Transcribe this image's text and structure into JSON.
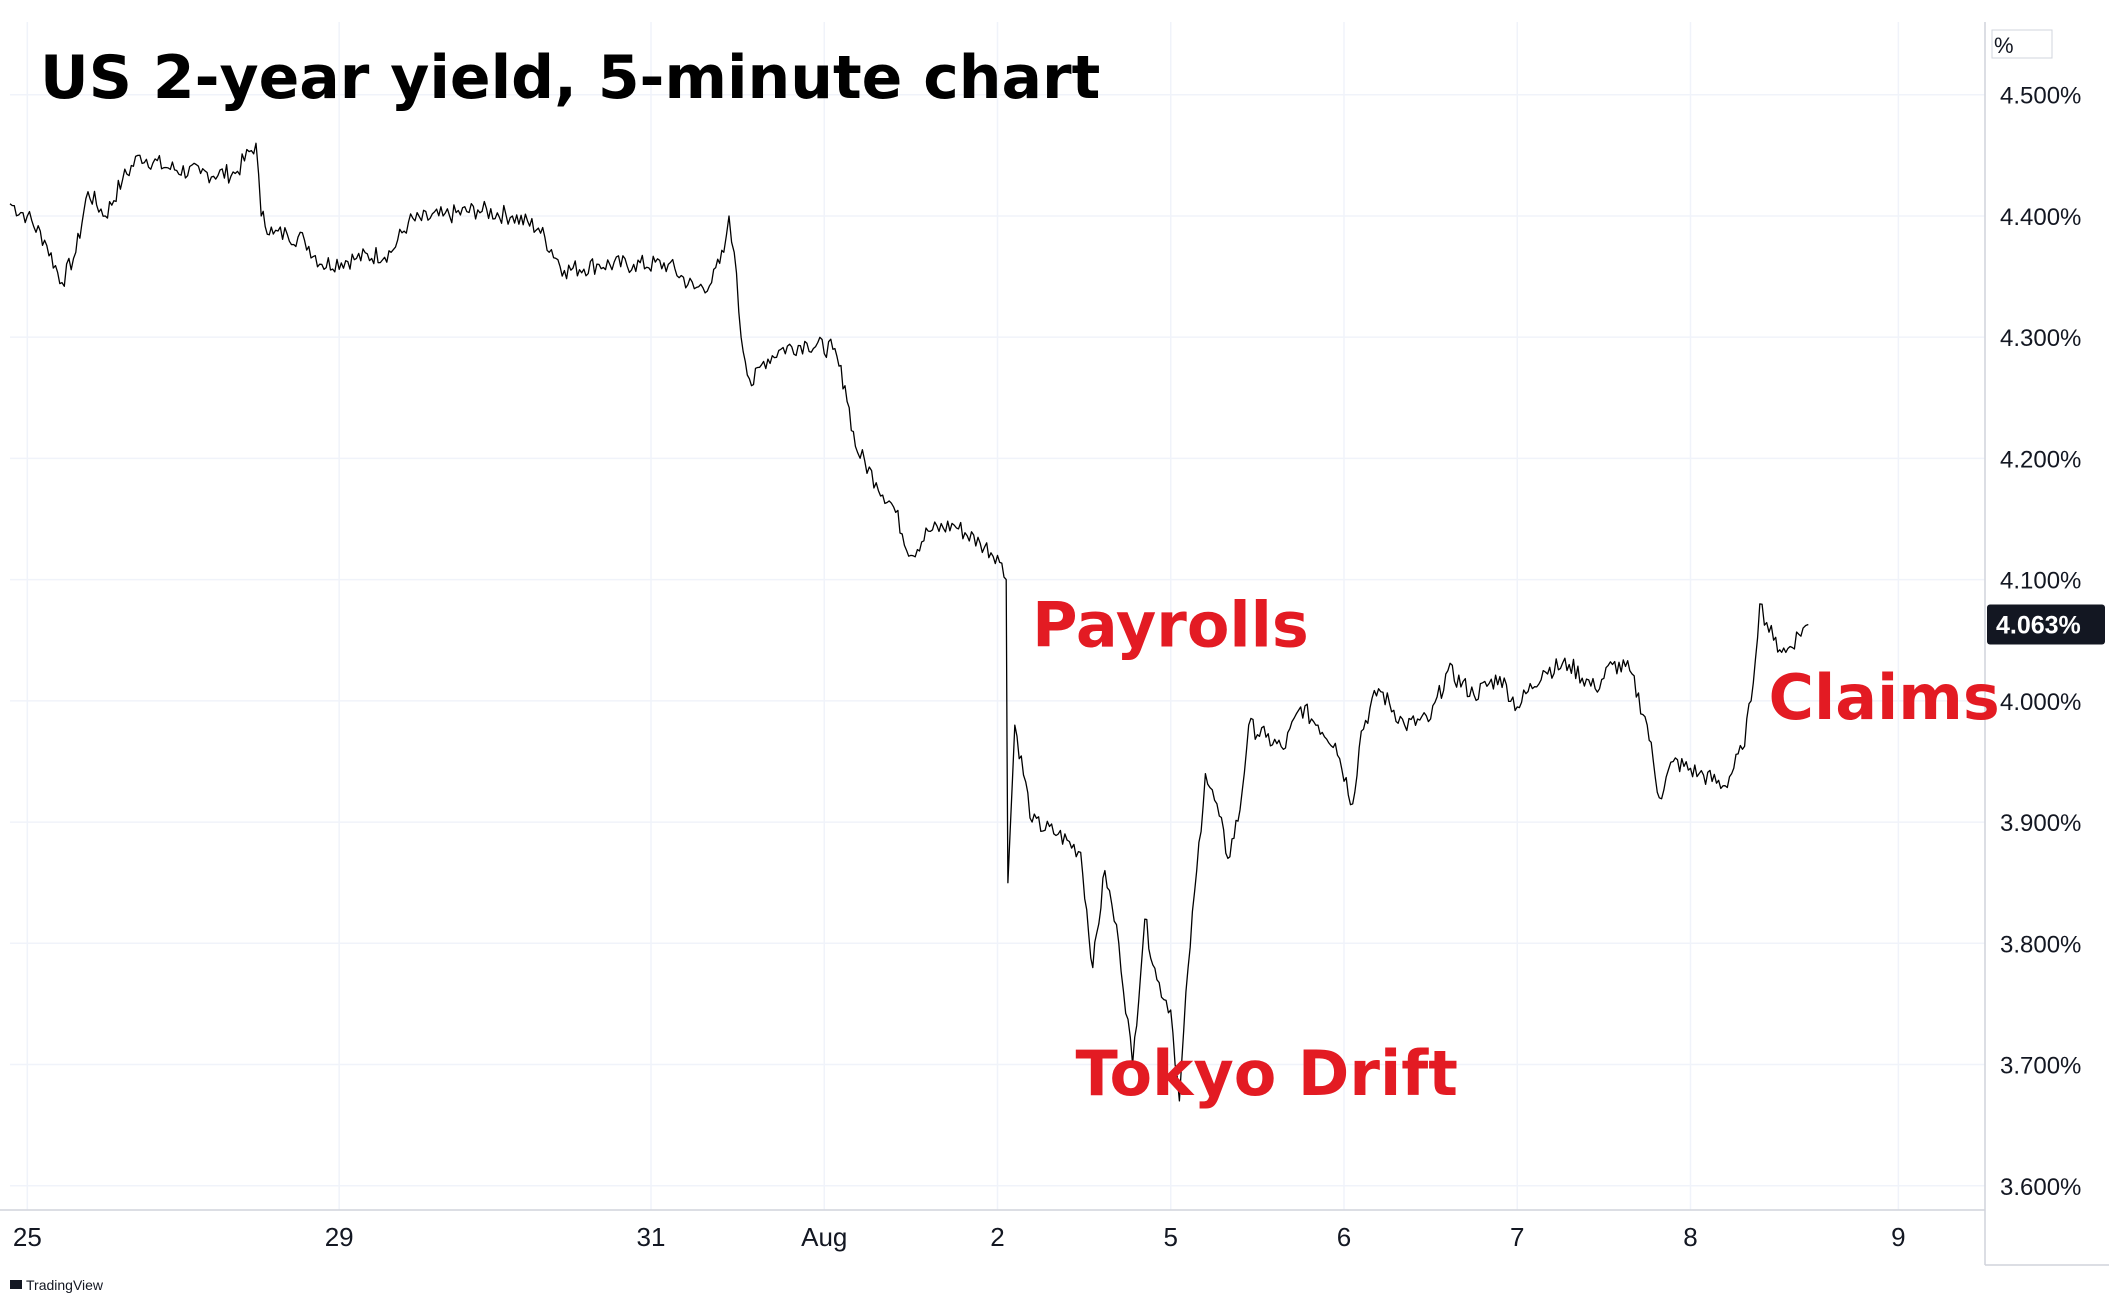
{
  "chart_data": {
    "type": "line",
    "title": "US 2-year yield, 5-minute chart",
    "ylabel": "%",
    "xlabel": "",
    "ylim": [
      3.58,
      4.56
    ],
    "y_ticks": [
      "3.600%",
      "3.700%",
      "3.800%",
      "3.900%",
      "4.000%",
      "4.100%",
      "4.200%",
      "4.300%",
      "4.400%",
      "4.500%"
    ],
    "y_tick_values": [
      3.6,
      3.7,
      3.8,
      3.9,
      4.0,
      4.1,
      4.2,
      4.3,
      4.4,
      4.5
    ],
    "x_ticks": [
      "25",
      "29",
      "31",
      "Aug",
      "2",
      "5",
      "6",
      "7",
      "8",
      "9"
    ],
    "x_tick_positions": [
      0.4,
      2.2,
      4.0,
      5.0,
      6.0,
      7.0,
      8.0,
      9.0,
      10.0,
      11.2
    ],
    "xlim": [
      0.3,
      11.7
    ],
    "grid": true,
    "last_value": 4.063,
    "last_value_label": "4.063%",
    "annotations": [
      {
        "text": "Payrolls",
        "x": 6.2,
        "y": 4.045
      },
      {
        "text": "Tokyo Drift",
        "x": 6.45,
        "y": 3.675
      },
      {
        "text": "Claims",
        "x": 10.45,
        "y": 3.985
      }
    ],
    "series": [
      {
        "points": [
          [
            0.3,
            4.41
          ],
          [
            0.4,
            4.4
          ],
          [
            0.5,
            4.38
          ],
          [
            0.6,
            4.345
          ],
          [
            0.68,
            4.37
          ],
          [
            0.75,
            4.42
          ],
          [
            0.85,
            4.4
          ],
          [
            0.95,
            4.43
          ],
          [
            1.05,
            4.45
          ],
          [
            1.2,
            4.44
          ],
          [
            1.4,
            4.435
          ],
          [
            1.6,
            4.435
          ],
          [
            1.72,
            4.46
          ],
          [
            1.75,
            4.4
          ],
          [
            1.82,
            4.385
          ],
          [
            1.9,
            4.385
          ],
          [
            2.0,
            4.38
          ],
          [
            2.1,
            4.36
          ],
          [
            2.3,
            4.365
          ],
          [
            2.5,
            4.37
          ],
          [
            2.6,
            4.395
          ],
          [
            2.8,
            4.4
          ],
          [
            3.0,
            4.405
          ],
          [
            3.2,
            4.4
          ],
          [
            3.35,
            4.39
          ],
          [
            3.5,
            4.355
          ],
          [
            3.7,
            4.36
          ],
          [
            3.9,
            4.36
          ],
          [
            4.1,
            4.36
          ],
          [
            4.25,
            4.34
          ],
          [
            4.35,
            4.345
          ],
          [
            4.42,
            4.37
          ],
          [
            4.45,
            4.4
          ],
          [
            4.48,
            4.37
          ],
          [
            4.52,
            4.3
          ],
          [
            4.58,
            4.26
          ],
          [
            4.65,
            4.28
          ],
          [
            4.75,
            4.29
          ],
          [
            4.9,
            4.295
          ],
          [
            5.05,
            4.29
          ],
          [
            5.12,
            4.26
          ],
          [
            5.18,
            4.21
          ],
          [
            5.3,
            4.18
          ],
          [
            5.4,
            4.16
          ],
          [
            5.5,
            4.12
          ],
          [
            5.6,
            4.14
          ],
          [
            5.75,
            4.145
          ],
          [
            5.9,
            4.13
          ],
          [
            6.0,
            4.12
          ],
          [
            6.05,
            4.1
          ],
          [
            6.06,
            3.85
          ],
          [
            6.1,
            3.98
          ],
          [
            6.2,
            3.9
          ],
          [
            6.35,
            3.89
          ],
          [
            6.48,
            3.875
          ],
          [
            6.55,
            3.78
          ],
          [
            6.62,
            3.86
          ],
          [
            6.7,
            3.8
          ],
          [
            6.78,
            3.7
          ],
          [
            6.85,
            3.82
          ],
          [
            6.92,
            3.77
          ],
          [
            7.0,
            3.745
          ],
          [
            7.05,
            3.67
          ],
          [
            7.1,
            3.78
          ],
          [
            7.15,
            3.86
          ],
          [
            7.2,
            3.94
          ],
          [
            7.28,
            3.905
          ],
          [
            7.33,
            3.87
          ],
          [
            7.4,
            3.91
          ],
          [
            7.45,
            3.98
          ],
          [
            7.55,
            3.97
          ],
          [
            7.65,
            3.96
          ],
          [
            7.75,
            3.995
          ],
          [
            7.85,
            3.98
          ],
          [
            7.95,
            3.965
          ],
          [
            8.05,
            3.915
          ],
          [
            8.1,
            3.975
          ],
          [
            8.2,
            4.01
          ],
          [
            8.35,
            3.98
          ],
          [
            8.5,
            3.985
          ],
          [
            8.6,
            4.025
          ],
          [
            8.75,
            4.005
          ],
          [
            8.9,
            4.02
          ],
          [
            9.0,
            3.995
          ],
          [
            9.15,
            4.025
          ],
          [
            9.3,
            4.03
          ],
          [
            9.45,
            4.01
          ],
          [
            9.55,
            4.03
          ],
          [
            9.65,
            4.025
          ],
          [
            9.75,
            3.98
          ],
          [
            9.82,
            3.92
          ],
          [
            9.9,
            3.95
          ],
          [
            10.05,
            3.94
          ],
          [
            10.2,
            3.93
          ],
          [
            10.3,
            3.96
          ],
          [
            10.35,
            4.0
          ],
          [
            10.4,
            4.08
          ],
          [
            10.48,
            4.05
          ],
          [
            10.55,
            4.04
          ],
          [
            10.65,
            4.06
          ],
          [
            10.68,
            4.063
          ]
        ]
      }
    ]
  },
  "watermark": "TradingView"
}
